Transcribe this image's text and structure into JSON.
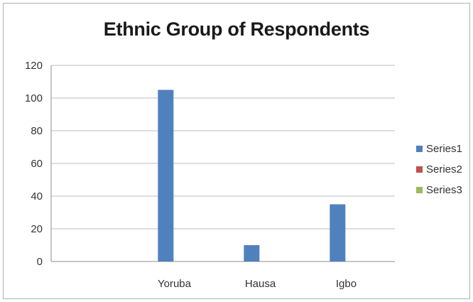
{
  "chart_data": {
    "type": "bar",
    "title": "Ethnic Group of Respondents",
    "categories": [
      "",
      "Yoruba",
      "Hausa",
      "Igbo"
    ],
    "series": [
      {
        "name": "Series1",
        "color": "#4f81bd",
        "values": [
          null,
          105,
          10,
          35
        ]
      },
      {
        "name": "Series2",
        "color": "#c0504d",
        "values": [
          null,
          null,
          null,
          null
        ]
      },
      {
        "name": "Series3",
        "color": "#9bbb59",
        "values": [
          null,
          null,
          null,
          null
        ]
      }
    ],
    "ylim": [
      0,
      120
    ],
    "yticks": [
      0,
      20,
      40,
      60,
      80,
      100,
      120
    ],
    "grid": true,
    "legend": "right"
  }
}
